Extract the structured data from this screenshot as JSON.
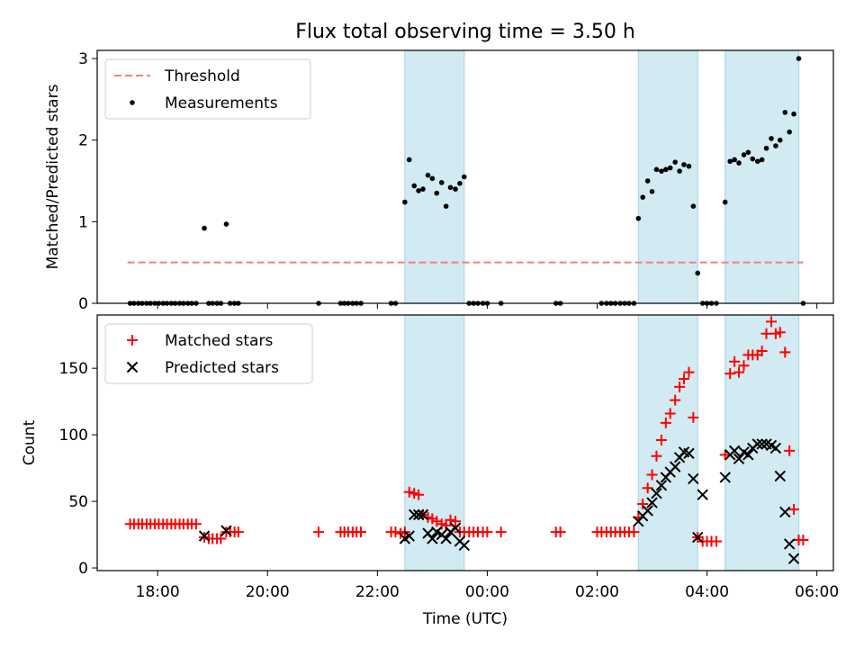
{
  "chart_data": {
    "title": "Flux total observing time = 3.50 h",
    "xlabel": "Time (UTC)",
    "x_tick_labels": [
      "18:00",
      "20:00",
      "22:00",
      "00:00",
      "02:00",
      "04:00",
      "06:00"
    ],
    "colors": {
      "threshold": "#f08080",
      "bands": "#add8e6",
      "matched": "#ff0000",
      "predicted": "#000000",
      "measurements": "#000000"
    },
    "shaded_intervals": [
      [
        22.5,
        23.58
      ],
      [
        26.75,
        27.83
      ],
      [
        28.33,
        29.67
      ]
    ],
    "panels": [
      {
        "type": "scatter",
        "ylabel": "Matched/Predicted stars",
        "ylim": [
          0,
          3.1
        ],
        "yticks": [
          0,
          1,
          2,
          3
        ],
        "legend": "top-left",
        "series": [
          {
            "name": "Threshold",
            "style": "dashed-line",
            "x": [
              17.45,
              29.75
            ],
            "y": [
              0.5,
              0.5
            ]
          },
          {
            "name": "Measurements",
            "style": "dot",
            "x": [
              17.5,
              17.57,
              17.65,
              17.72,
              17.8,
              17.87,
              17.95,
              18.02,
              18.1,
              18.17,
              18.25,
              18.32,
              18.4,
              18.47,
              18.55,
              18.62,
              18.7,
              18.85,
              18.93,
              19.0,
              19.08,
              19.15,
              19.25,
              19.32,
              19.4,
              19.47,
              20.93,
              21.33,
              21.4,
              21.47,
              21.55,
              21.62,
              21.7,
              22.25,
              22.33,
              22.5,
              22.58,
              22.67,
              22.75,
              22.83,
              22.92,
              23.0,
              23.08,
              23.17,
              23.25,
              23.33,
              23.42,
              23.5,
              23.58,
              23.67,
              23.75,
              23.83,
              23.92,
              24.0,
              24.25,
              25.25,
              25.33,
              26.08,
              26.17,
              26.25,
              26.33,
              26.42,
              26.5,
              26.58,
              26.67,
              26.75,
              26.83,
              26.92,
              27.0,
              27.08,
              27.17,
              27.25,
              27.33,
              27.42,
              27.5,
              27.58,
              27.67,
              27.75,
              27.83,
              27.92,
              28.0,
              28.08,
              28.17,
              28.33,
              28.42,
              28.5,
              28.58,
              28.67,
              28.75,
              28.83,
              28.92,
              29.0,
              29.08,
              29.17,
              29.25,
              29.33,
              29.42,
              29.5,
              29.58,
              29.67,
              29.75
            ],
            "y": [
              0,
              0,
              0,
              0,
              0,
              0,
              0,
              0,
              0,
              0,
              0,
              0,
              0,
              0,
              0,
              0,
              0,
              0.92,
              0,
              0,
              0,
              0,
              0.97,
              0,
              0,
              0,
              0,
              0,
              0,
              0,
              0,
              0,
              0,
              0,
              0,
              1.24,
              1.76,
              1.44,
              1.38,
              1.4,
              1.57,
              1.53,
              1.35,
              1.48,
              1.19,
              1.42,
              1.4,
              1.47,
              1.55,
              0,
              0,
              0,
              0,
              0,
              0,
              0,
              0,
              0,
              0,
              0,
              0,
              0,
              0,
              0,
              0,
              1.04,
              1.3,
              1.5,
              1.37,
              1.64,
              1.62,
              1.64,
              1.66,
              1.73,
              1.62,
              1.7,
              1.68,
              1.19,
              0.37,
              0,
              0,
              0,
              0,
              1.24,
              1.74,
              1.76,
              1.72,
              1.82,
              1.85,
              1.77,
              1.74,
              1.76,
              1.9,
              2.02,
              1.93,
              2.0,
              2.34,
              2.1,
              2.32,
              3.0,
              0
            ]
          }
        ]
      },
      {
        "type": "scatter",
        "ylabel": "Count",
        "ylim": [
          -2,
          190
        ],
        "yticks": [
          0,
          50,
          100,
          150
        ],
        "legend": "top-left",
        "series": [
          {
            "name": "Matched stars",
            "style": "plus",
            "x": [
              17.5,
              17.57,
              17.65,
              17.72,
              17.8,
              17.87,
              17.95,
              18.02,
              18.1,
              18.17,
              18.25,
              18.32,
              18.4,
              18.47,
              18.55,
              18.62,
              18.7,
              18.85,
              18.93,
              19.0,
              19.08,
              19.15,
              19.25,
              19.32,
              19.4,
              19.47,
              20.93,
              21.33,
              21.4,
              21.47,
              21.55,
              21.62,
              21.7,
              22.25,
              22.33,
              22.42,
              22.5,
              22.58,
              22.67,
              22.75,
              22.83,
              22.92,
              23.0,
              23.08,
              23.17,
              23.25,
              23.33,
              23.42,
              23.5,
              23.58,
              23.67,
              23.75,
              23.83,
              23.92,
              24.0,
              24.25,
              25.25,
              25.33,
              26.0,
              26.08,
              26.17,
              26.25,
              26.33,
              26.42,
              26.5,
              26.58,
              26.67,
              26.75,
              26.83,
              26.92,
              27.0,
              27.08,
              27.17,
              27.25,
              27.33,
              27.42,
              27.5,
              27.58,
              27.67,
              27.75,
              27.83,
              27.92,
              28.0,
              28.08,
              28.17,
              28.33,
              28.42,
              28.5,
              28.58,
              28.67,
              28.75,
              28.83,
              28.92,
              29.0,
              29.08,
              29.17,
              29.25,
              29.33,
              29.42,
              29.5,
              29.58,
              29.67,
              29.75
            ],
            "y": [
              33,
              33,
              33,
              33,
              33,
              33,
              33,
              33,
              33,
              33,
              33,
              33,
              33,
              33,
              33,
              33,
              33,
              23,
              22,
              22,
              22,
              22,
              27,
              27,
              27,
              27,
              27,
              27,
              27,
              27,
              27,
              27,
              27,
              27,
              27,
              26,
              27,
              57,
              56,
              55,
              40,
              38,
              37,
              35,
              33,
              32,
              36,
              35,
              27,
              27,
              27,
              27,
              27,
              27,
              27,
              27,
              27,
              27,
              27,
              27,
              27,
              27,
              27,
              27,
              27,
              27,
              27,
              38,
              48,
              60,
              70,
              84,
              96,
              109,
              116,
              126,
              136,
              142,
              147,
              113,
              23,
              20,
              20,
              20,
              20,
              85,
              146,
              155,
              147,
              152,
              160,
              160,
              160,
              163,
              176,
              185,
              176,
              177,
              162,
              88,
              44,
              21,
              21
            ]
          },
          {
            "name": "Predicted stars",
            "style": "x",
            "x": [
              18.85,
              19.25,
              22.5,
              22.58,
              22.67,
              22.75,
              22.83,
              22.92,
              23.0,
              23.08,
              23.17,
              23.25,
              23.33,
              23.42,
              23.5,
              23.58,
              26.75,
              26.83,
              26.92,
              27.0,
              27.08,
              27.17,
              27.25,
              27.33,
              27.42,
              27.5,
              27.58,
              27.67,
              27.75,
              27.83,
              27.92,
              28.33,
              28.42,
              28.5,
              28.58,
              28.67,
              28.75,
              28.83,
              28.92,
              29.0,
              29.08,
              29.17,
              29.25,
              29.33,
              29.42,
              29.5,
              29.58
            ],
            "y": [
              24,
              28,
              22,
              24,
              40,
              40,
              40,
              26,
              22,
              27,
              25,
              22,
              27,
              30,
              20,
              17,
              35,
              39,
              43,
              49,
              56,
              62,
              68,
              72,
              76,
              83,
              87,
              86,
              67,
              23,
              55,
              68,
              85,
              88,
              82,
              87,
              85,
              90,
              93,
              93,
              93,
              92,
              90,
              69,
              42,
              18,
              7
            ]
          }
        ]
      }
    ]
  }
}
